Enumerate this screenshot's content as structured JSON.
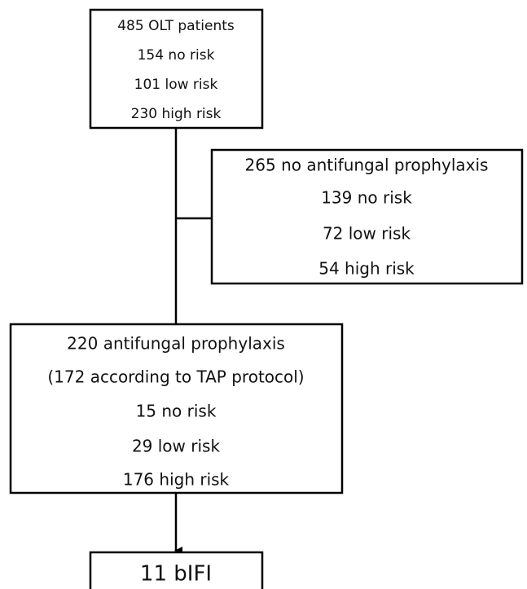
{
  "nodes": [
    {
      "lines": [
        "485 OLT patients",
        "154 no risk",
        "101 low risk",
        "230 high risk"
      ]
    },
    {
      "lines": [
        "265 no antifungal prophylaxis",
        "139 no risk",
        "72 low risk",
        "54 high risk"
      ]
    },
    {
      "lines": [
        "220 antifungal prophylaxis",
        "(172 according to TAP protocol)",
        "15 no risk",
        "29 low risk",
        "176 high risk"
      ]
    },
    {
      "lines": [
        "11 bIFI"
      ]
    }
  ]
}
